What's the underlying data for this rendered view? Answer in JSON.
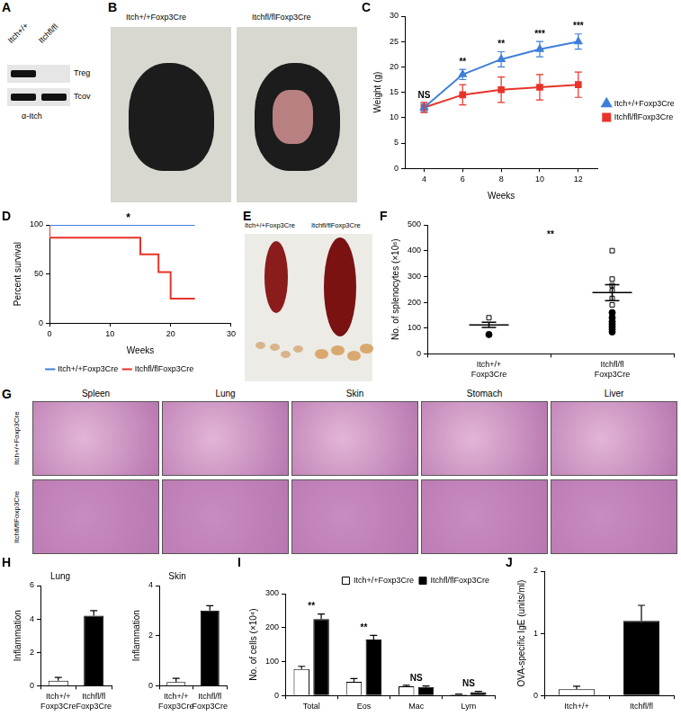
{
  "image_panels": [
    {
      "panel": "A",
      "columns": [
        "Itch+/+",
        "Itchfl/fl"
      ],
      "rows": [
        "Treg",
        "Tcov"
      ],
      "footer": "α-Itch"
    },
    {
      "panel": "B",
      "captions": [
        "Itch+/+Foxp3Cre",
        "Itchfl/flFoxp3Cre"
      ]
    },
    {
      "panel": "E",
      "captions": [
        "Itch+/+Foxp3Cre",
        "Itchfl/flFoxp3Cre"
      ]
    },
    {
      "panel": "G",
      "columns": [
        "Spleen",
        "Lung",
        "Skin",
        "Stomach",
        "Liver"
      ],
      "rows": [
        "Itch+/+Foxp3Cre",
        "Itchfl/flFoxp3Cre"
      ]
    }
  ],
  "chart_data": [
    {
      "panel": "C",
      "type": "line",
      "x": [
        4,
        6,
        8,
        10,
        12
      ],
      "xlim": [
        3,
        13
      ],
      "xticks": [
        4,
        6,
        8,
        10,
        12
      ],
      "ylim": [
        0,
        30
      ],
      "yticks": [
        0,
        5,
        10,
        15,
        20,
        25,
        30
      ],
      "x_label": "Weeks",
      "y_label": "Weight (g)",
      "grid": false,
      "legend": "right",
      "series": [
        {
          "name": "Itch+/+Foxp3Cre",
          "color": "#3f7fd9",
          "marker": "triangle",
          "values": [
            12,
            18.5,
            21.5,
            23.5,
            25
          ],
          "errors": [
            0.8,
            1,
            1.5,
            1.5,
            1.5
          ]
        },
        {
          "name": "Itchfl/flFoxp3Cre",
          "color": "#e8332a",
          "marker": "square",
          "values": [
            12,
            14.5,
            15.5,
            16,
            16.5
          ],
          "errors": [
            1,
            2,
            2.5,
            2.5,
            2.5
          ]
        }
      ],
      "annotations": [
        "NS",
        "**",
        "**",
        "***",
        "***"
      ]
    },
    {
      "panel": "D",
      "type": "line",
      "line_style": "steps",
      "xlim": [
        0,
        30
      ],
      "xticks": [
        0,
        10,
        20,
        30
      ],
      "ylim": [
        0,
        100
      ],
      "yticks": [
        0,
        50,
        100
      ],
      "x_label": "Weeks",
      "y_label": "Percent survival",
      "grid": false,
      "legend": "bottom",
      "series": [
        {
          "name": "Itch+/+Foxp3Cre",
          "color": "#3f7fd9",
          "x": [
            0,
            24
          ],
          "values": [
            100,
            100
          ]
        },
        {
          "name": "Itchfl/flFoxp3Cre",
          "color": "#e8332a",
          "x": [
            0,
            15,
            18,
            20,
            23,
            24
          ],
          "values": [
            100,
            87,
            70,
            52,
            25,
            25
          ]
        }
      ],
      "annotations": [
        {
          "x": 13,
          "text": "*"
        }
      ]
    },
    {
      "panel": "F",
      "type": "scatter",
      "categories": [
        [
          "Itch+/+",
          "Foxp3Cre"
        ],
        [
          "Itchfl/fl",
          "Foxp3Cre"
        ]
      ],
      "ylim": [
        0,
        500
      ],
      "yticks": [
        0,
        100,
        200,
        300,
        400,
        500
      ],
      "y_label": "No. of splenocytes (×10⁶)",
      "grid": false,
      "values": [
        [
          75,
          85,
          95,
          105,
          115,
          125,
          140,
          160
        ],
        [
          140,
          155,
          190,
          215,
          245,
          265,
          290,
          400
        ]
      ],
      "means": [
        112.5,
        237.5
      ],
      "errors": [
        10,
        31
      ],
      "markers": [
        "circle",
        "square"
      ],
      "annotations": [
        "**"
      ]
    },
    {
      "panel": "H",
      "type": "bar",
      "title": "Lung",
      "categories": [
        [
          "Itch+/+",
          "Foxp3Cre"
        ],
        [
          "Itchfl/fl",
          "Foxp3Cre"
        ]
      ],
      "values": [
        0.3,
        4.2
      ],
      "errors": [
        0.2,
        0.3
      ],
      "colors": [
        "#ffffff",
        "#000000"
      ],
      "ylim": [
        0,
        6
      ],
      "yticks": [
        0,
        2,
        4,
        6
      ],
      "y_label": "Inflammation",
      "grid": false
    },
    {
      "type": "bar",
      "title": "Skin",
      "categories": [
        [
          "Itch+/+",
          "Foxp3Cre"
        ],
        [
          "Itchfl/fl",
          "Foxp3Cre"
        ]
      ],
      "values": [
        0.15,
        3.0
      ],
      "errors": [
        0.15,
        0.2
      ],
      "colors": [
        "#ffffff",
        "#000000"
      ],
      "ylim": [
        0,
        4
      ],
      "yticks": [
        0,
        2,
        4
      ],
      "y_label": "Inflammation",
      "grid": false
    },
    {
      "panel": "I",
      "type": "bar",
      "categories": [
        "Total",
        "Eos",
        "Mac",
        "Lym"
      ],
      "series": [
        {
          "name": "Itch+/+Foxp3Cre",
          "color": "#ffffff",
          "values": [
            78,
            40,
            27,
            3
          ],
          "errors": [
            8,
            10,
            3,
            1
          ]
        },
        {
          "name": "Itchfl/flFoxp3Cre",
          "color": "#000000",
          "values": [
            225,
            165,
            25,
            10
          ],
          "errors": [
            15,
            12,
            3,
            2
          ]
        }
      ],
      "ylim": [
        0,
        300
      ],
      "yticks": [
        0,
        100,
        200,
        300
      ],
      "y_label": "No. of cells (×10⁴)",
      "grid": false,
      "legend": "top-right",
      "annotations": [
        "**",
        "**",
        "NS",
        "NS"
      ]
    },
    {
      "panel": "J",
      "type": "bar",
      "categories": [
        "Itch+/+",
        "Itchfl/fl"
      ],
      "values": [
        0.1,
        1.2
      ],
      "errors": [
        0.05,
        0.25
      ],
      "colors": [
        "#ffffff",
        "#000000"
      ],
      "ylim": [
        0,
        2
      ],
      "yticks": [
        0,
        1,
        2
      ],
      "y_label": "OVA-specific IgE (units/ml)",
      "grid": false
    }
  ]
}
